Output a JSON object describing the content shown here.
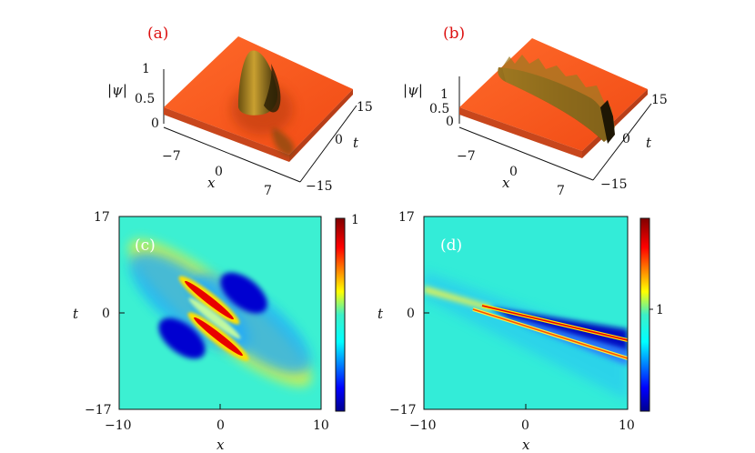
{
  "chart_data": [
    {
      "type": "surface",
      "panel_label": "(a)",
      "xlabel": "x",
      "ylabel": "t",
      "zlabel": "|ψ|",
      "x_ticks": [
        "−7",
        "0",
        "7"
      ],
      "y_ticks": [
        "15",
        "0",
        "−15"
      ],
      "z_ticks": [
        "1",
        "0.5",
        "0"
      ],
      "z_range": [
        0,
        1.1
      ],
      "colors": {
        "background": "#ff5a1f",
        "peak": "#8a6a10",
        "shadow": "#3a2a08"
      }
    },
    {
      "type": "surface",
      "panel_label": "(b)",
      "xlabel": "x",
      "ylabel": "t",
      "zlabel": "|ψ|",
      "x_ticks": [
        "−7",
        "0",
        "7"
      ],
      "y_ticks": [
        "15",
        "0",
        "−15"
      ],
      "z_ticks": [
        "1",
        "0.5",
        "0"
      ],
      "z_range": [
        0,
        1.1
      ],
      "colors": {
        "background": "#ff5a1f",
        "peak": "#8a6a10",
        "shadow": "#3a2a08"
      }
    },
    {
      "type": "heatmap",
      "panel_label": "(c)",
      "xlabel": "x",
      "ylabel": "t",
      "x_ticks": [
        "−10",
        "0",
        "10"
      ],
      "y_ticks": [
        "17",
        "0",
        "−17"
      ],
      "xlim": [
        -10,
        10
      ],
      "ylim": [
        -17,
        17
      ],
      "colorbar_ticks": [
        "1"
      ],
      "colormap": "jet"
    },
    {
      "type": "heatmap",
      "panel_label": "(d)",
      "xlabel": "x",
      "ylabel": "t",
      "x_ticks": [
        "−10",
        "0",
        "10"
      ],
      "y_ticks": [
        "17",
        "0",
        "−17"
      ],
      "xlim": [
        -10,
        10
      ],
      "ylim": [
        -17,
        17
      ],
      "colorbar_ticks": [
        "1"
      ],
      "colormap": "jet"
    }
  ]
}
